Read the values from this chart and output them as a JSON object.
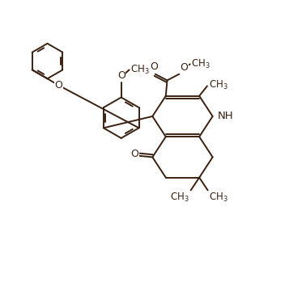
{
  "bg_color": "#ffffff",
  "line_color": "#3a2010",
  "line_width": 1.4,
  "fig_width": 3.52,
  "fig_height": 3.65,
  "dpi": 100,
  "xlim": [
    0,
    10
  ],
  "ylim": [
    0,
    10
  ],
  "font_size": 9.0
}
